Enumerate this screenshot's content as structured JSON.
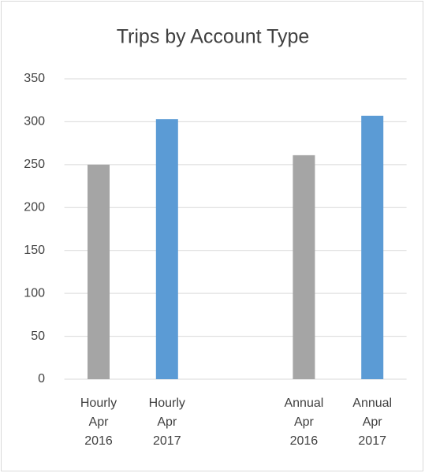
{
  "chart_data": {
    "type": "bar",
    "title": "Trips by Account Type",
    "categories": [
      "Hourly Apr 2016",
      "Hourly Apr 2017",
      null,
      "Annual Apr 2016",
      "Annual Apr 2017"
    ],
    "values": [
      250,
      303,
      null,
      261,
      307
    ],
    "colors": [
      "#a5a5a5",
      "#5b9bd5",
      null,
      "#a5a5a5",
      "#5b9bd5"
    ],
    "ylim": [
      0,
      350
    ],
    "yticks": [
      0,
      50,
      100,
      150,
      200,
      250,
      300,
      350
    ],
    "grid": true
  }
}
